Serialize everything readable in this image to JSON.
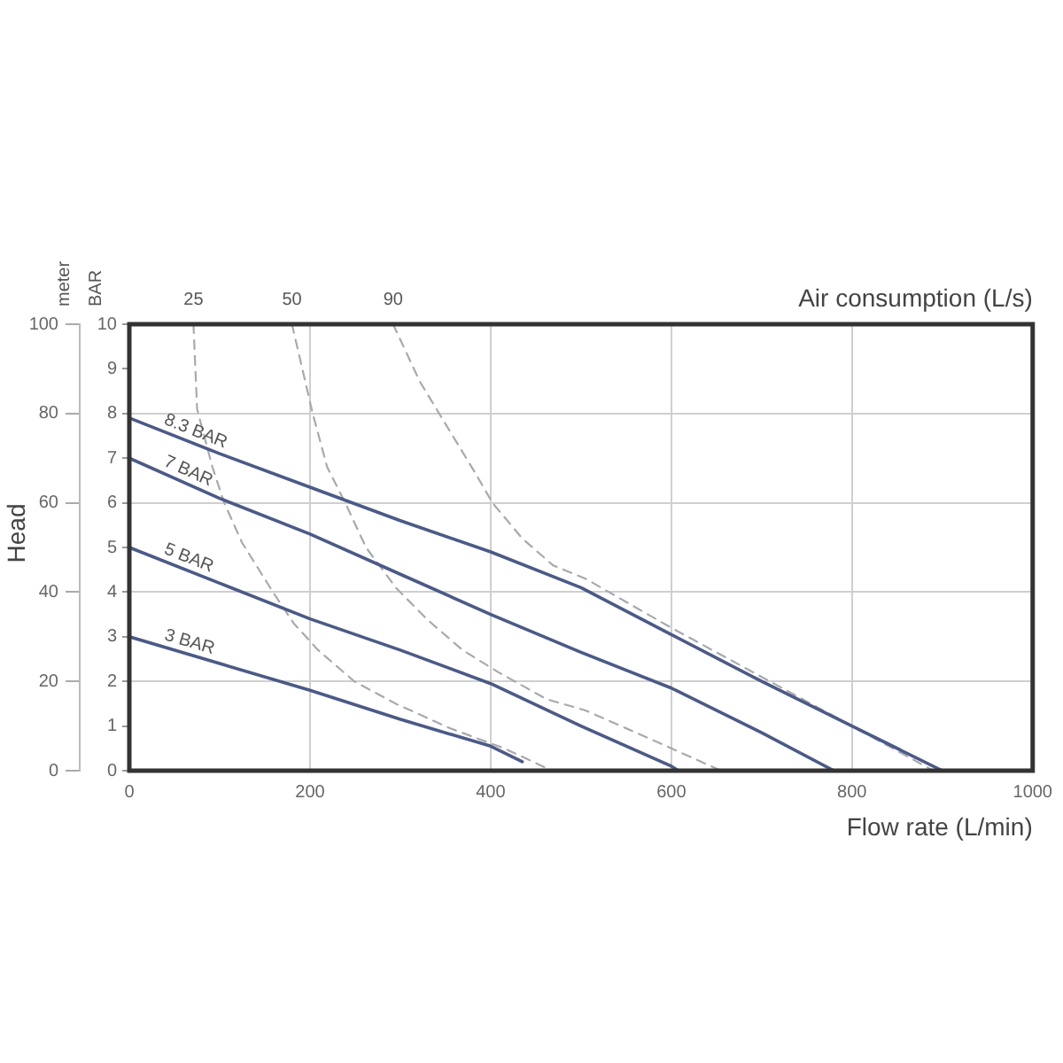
{
  "chart_data": {
    "type": "line",
    "xlabel": "Flow rate (L/min)",
    "ylabel": "BAR",
    "y2label": "meter",
    "annotations": [
      "Head",
      "Air consumption (L/s)"
    ],
    "xlim": [
      0,
      1000
    ],
    "xticks": [
      0,
      200,
      400,
      600,
      800,
      1000
    ],
    "ylim": [
      0,
      10
    ],
    "yticks": [
      0,
      1,
      2,
      3,
      4,
      5,
      6,
      7,
      8,
      9,
      10
    ],
    "y2lim": [
      0,
      100
    ],
    "y2ticks": [
      0,
      20,
      40,
      60,
      80,
      100
    ],
    "grid": true,
    "legend": false,
    "marker": "none",
    "series": [
      {
        "name": "8.3 BAR",
        "color": "#4b5a86",
        "line_style": "solid",
        "x": [
          0,
          100,
          200,
          300,
          400,
          500,
          600,
          700,
          800,
          900
        ],
        "values": [
          7.9,
          7.1,
          6.35,
          5.6,
          4.9,
          4.1,
          3.05,
          2.0,
          1.0,
          0
        ]
      },
      {
        "name": "7 BAR",
        "color": "#4b5a86",
        "line_style": "solid",
        "x": [
          0,
          100,
          200,
          300,
          400,
          500,
          600,
          700,
          780
        ],
        "values": [
          7.0,
          6.1,
          5.3,
          4.4,
          3.5,
          2.65,
          1.85,
          0.85,
          0
        ]
      },
      {
        "name": "5 BAR",
        "color": "#4b5a86",
        "line_style": "solid",
        "x": [
          0,
          100,
          200,
          300,
          400,
          500,
          600,
          608
        ],
        "values": [
          5.0,
          4.2,
          3.4,
          2.7,
          1.95,
          1.0,
          0.1,
          0
        ]
      },
      {
        "name": "3 BAR",
        "color": "#4b5a86",
        "line_style": "solid",
        "x": [
          0,
          100,
          200,
          300,
          400,
          435
        ],
        "values": [
          3.0,
          2.4,
          1.8,
          1.15,
          0.55,
          0.2
        ]
      },
      {
        "name": "25",
        "color": "#a8a8b0",
        "line_style": "dashed",
        "x": [
          71,
          75,
          92,
          105,
          125,
          159,
          182,
          209,
          249,
          295,
          355,
          415,
          468
        ],
        "values": [
          10,
          8.1,
          6.8,
          6.0,
          5.1,
          4.0,
          3.3,
          2.7,
          2.0,
          1.5,
          0.95,
          0.5,
          0
        ]
      },
      {
        "name": "50",
        "color": "#a8a8b0",
        "line_style": "dashed",
        "x": [
          180,
          203,
          219,
          239,
          262,
          295,
          329,
          369,
          409,
          462,
          505,
          550,
          600,
          655
        ],
        "values": [
          10,
          8.0,
          6.8,
          6.0,
          5.0,
          4.1,
          3.4,
          2.7,
          2.2,
          1.6,
          1.35,
          0.95,
          0.5,
          0
        ]
      },
      {
        "name": "90",
        "color": "#a8a8b0",
        "line_style": "dashed",
        "x": [
          292,
          322,
          355,
          382,
          402,
          435,
          469,
          505,
          600,
          700,
          800,
          890
        ],
        "values": [
          10,
          8.7,
          7.6,
          6.7,
          6.0,
          5.2,
          4.6,
          4.3,
          3.2,
          2.1,
          1.0,
          0
        ]
      }
    ]
  }
}
